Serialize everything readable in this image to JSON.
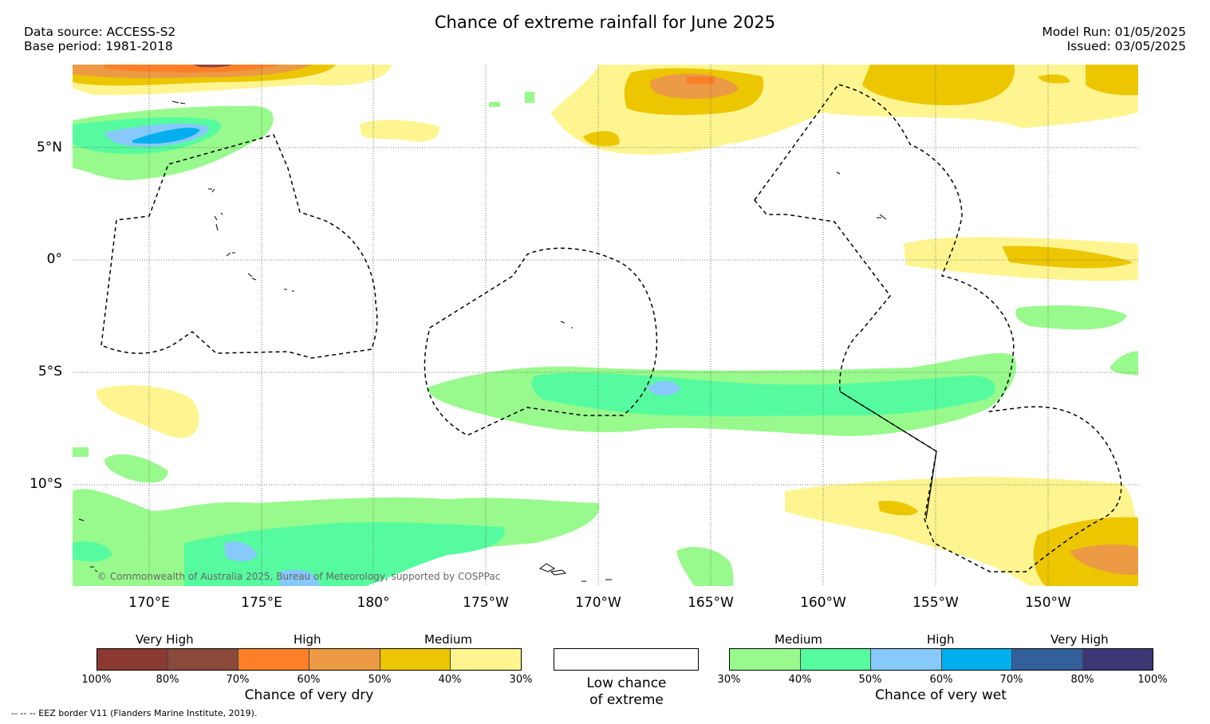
{
  "title": "Chance of extreme rainfall for June 2025",
  "meta_left": [
    "Data source: ACCESS-S2",
    "Base period: 1981-2018"
  ],
  "meta_right": [
    "Model Run: 01/05/2025",
    "Issued: 03/05/2025"
  ],
  "map": {
    "lat_labels": [
      "5°N",
      "0°",
      "5°S",
      "10°S"
    ],
    "lon_labels": [
      "170°E",
      "175°E",
      "180°",
      "175°W",
      "170°W",
      "165°W",
      "160°W",
      "155°W",
      "150°W"
    ],
    "credit": "© Commonwealth of Australia 2025, Bureau of Meteorology, supported by COSPPac"
  },
  "legend_dry": {
    "group_labels": [
      "Very High",
      "High",
      "Medium"
    ],
    "colors": [
      "#8b3a32",
      "#8a4a3a",
      "#fe7f27",
      "#ec9a44",
      "#ecc600",
      "#fef590"
    ],
    "ticks": [
      "100%",
      "80%",
      "70%",
      "60%",
      "50%",
      "40%",
      "30%"
    ],
    "title": "Chance of very dry"
  },
  "legend_low": {
    "lines": [
      "Low chance",
      "of extreme"
    ]
  },
  "legend_wet": {
    "group_labels": [
      "Medium",
      "High",
      "Very High"
    ],
    "colors": [
      "#98fa8c",
      "#56fb9f",
      "#86c9fa",
      "#00b0ee",
      "#345f9d",
      "#3d3875"
    ],
    "ticks": [
      "30%",
      "40%",
      "50%",
      "60%",
      "70%",
      "80%",
      "100%"
    ],
    "title": "Chance of very wet"
  },
  "footnote": "-- -- -- EEZ border V11 (Flanders Marine Institute, 2019)."
}
